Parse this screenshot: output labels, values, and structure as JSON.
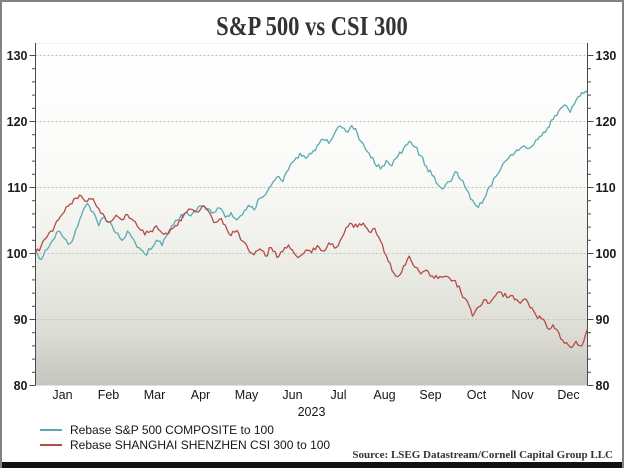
{
  "title": "S&P 500 vs CSI 300",
  "source": "Source: LSEG Datastream/Cornell Capital Group LLC",
  "legend": [
    {
      "label": "Rebase S&P 500 COMPOSITE to 100",
      "color": "#5aaab2"
    },
    {
      "label": "Rebase SHANGHAI SHENZHEN CSI 300 to 100",
      "color": "#b54b46"
    }
  ],
  "chart_data": {
    "type": "line",
    "title": "S&P 500 vs CSI 300",
    "x_axis": {
      "months": [
        "Jan",
        "Feb",
        "Mar",
        "Apr",
        "May",
        "Jun",
        "Jul",
        "Aug",
        "Sep",
        "Oct",
        "Nov",
        "Dec"
      ],
      "year_label": "2023"
    },
    "y_axis": {
      "min": 80,
      "max": 130,
      "major_ticks": [
        80,
        90,
        100,
        110,
        120,
        130
      ],
      "minor_step": 2,
      "labels_both_sides": true
    },
    "grid": "dotted horizontal at major ticks",
    "plot_background_gradient": [
      "#ffffff",
      "#fafaf8",
      "#eeeee9",
      "#dcdcd5",
      "#c5c5bf"
    ],
    "noise_amplitude": 0.42,
    "series": [
      {
        "name": "Rebase S&P 500 COMPOSITE to 100",
        "color": "#5aaab2",
        "values": [
          100.0,
          99.1,
          100.6,
          102.0,
          103.4,
          102.3,
          101.5,
          103.6,
          105.8,
          107.6,
          106.3,
          104.2,
          105.5,
          104.7,
          103.1,
          102.0,
          103.4,
          102.2,
          100.9,
          99.9,
          100.6,
          102.0,
          101.2,
          103.0,
          104.3,
          105.2,
          106.1,
          105.7,
          106.5,
          107.2,
          106.8,
          106.2,
          106.9,
          105.5,
          106.2,
          105.1,
          105.9,
          107.3,
          106.6,
          108.4,
          108.9,
          110.3,
          111.6,
          110.9,
          112.7,
          114.1,
          115.2,
          114.4,
          115.1,
          116.4,
          117.3,
          116.7,
          118.2,
          119.3,
          118.5,
          119.4,
          118.1,
          116.6,
          115.2,
          113.6,
          112.8,
          114.1,
          113.3,
          114.7,
          115.9,
          117.0,
          116.1,
          114.8,
          113.2,
          111.8,
          110.4,
          109.9,
          110.9,
          112.4,
          111.2,
          109.6,
          108.1,
          107.0,
          108.3,
          110.2,
          111.6,
          113.0,
          114.2,
          114.9,
          115.6,
          116.3,
          116.0,
          117.2,
          117.8,
          119.0,
          120.3,
          121.6,
          122.5,
          121.4,
          123.2,
          124.4,
          124.3
        ]
      },
      {
        "name": "Rebase SHANGHAI SHENZHEN CSI 300 to 100",
        "color": "#b54b46",
        "values": [
          100.0,
          101.2,
          102.5,
          103.4,
          105.1,
          106.3,
          107.5,
          108.4,
          108.7,
          107.9,
          108.3,
          106.8,
          105.6,
          104.8,
          105.8,
          105.1,
          105.9,
          105.0,
          103.8,
          102.8,
          103.4,
          104.2,
          103.1,
          102.9,
          103.9,
          105.0,
          106.1,
          106.7,
          106.3,
          107.2,
          106.5,
          104.7,
          105.2,
          104.3,
          102.7,
          103.5,
          101.9,
          100.6,
          99.8,
          100.7,
          99.6,
          100.9,
          99.4,
          100.3,
          101.3,
          100.0,
          99.6,
          100.5,
          100.1,
          101.2,
          100.4,
          101.6,
          100.8,
          102.0,
          103.9,
          104.5,
          104.0,
          104.6,
          103.3,
          103.8,
          101.9,
          99.7,
          97.4,
          96.5,
          98.1,
          99.6,
          97.9,
          96.9,
          97.5,
          96.6,
          96.2,
          96.5,
          96.3,
          95.9,
          94.1,
          92.9,
          90.5,
          91.9,
          93.0,
          92.5,
          93.6,
          94.1,
          93.3,
          93.6,
          92.7,
          93.1,
          91.8,
          90.7,
          90.1,
          88.7,
          89.2,
          88.0,
          86.4,
          85.8,
          86.7,
          86.0,
          88.6
        ]
      }
    ]
  }
}
